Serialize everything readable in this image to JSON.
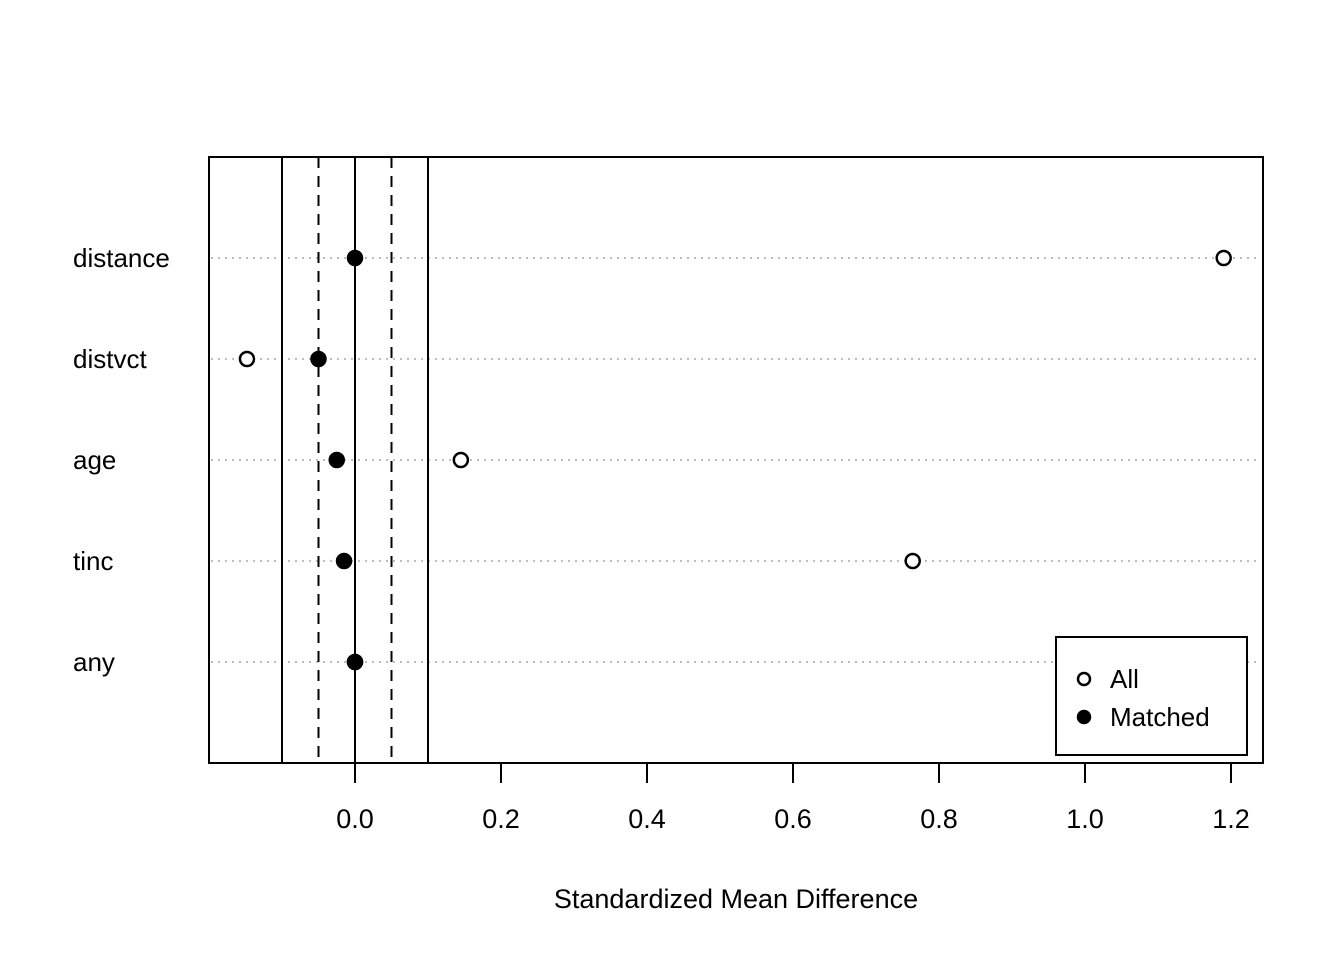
{
  "chart_data": {
    "type": "scatter",
    "title": "",
    "xlabel": "Standardized Mean Difference",
    "ylabel": "",
    "categories": [
      "distance",
      "distvct",
      "age",
      "tinc",
      "any"
    ],
    "series": [
      {
        "name": "All",
        "marker": "open-circle",
        "values": [
          1.19,
          -0.148,
          0.145,
          0.764,
          0.0
        ]
      },
      {
        "name": "Matched",
        "marker": "filled-circle",
        "values": [
          0.0,
          -0.05,
          -0.025,
          -0.015,
          0.0
        ]
      }
    ],
    "x_ticks": [
      0.0,
      0.2,
      0.4,
      0.6,
      0.8,
      1.0,
      1.2
    ],
    "x_tick_labels": [
      "0.0",
      "0.2",
      "0.4",
      "0.6",
      "0.8",
      "1.0",
      "1.2"
    ],
    "xlim": [
      -0.2,
      1.244
    ],
    "reference_lines_solid": [
      -0.1,
      0.0,
      0.1
    ],
    "reference_lines_dashed": [
      -0.05,
      0.05
    ],
    "grid": "dotted horizontal line per category",
    "legend": {
      "position": "bottom-right",
      "items": [
        {
          "label": "All",
          "marker": "open-circle"
        },
        {
          "label": "Matched",
          "marker": "filled-circle"
        }
      ]
    },
    "colors": {
      "foreground": "#000000",
      "gridline": "#bebebe",
      "background": "#ffffff",
      "open_marker_fill": "#ffffff"
    }
  }
}
